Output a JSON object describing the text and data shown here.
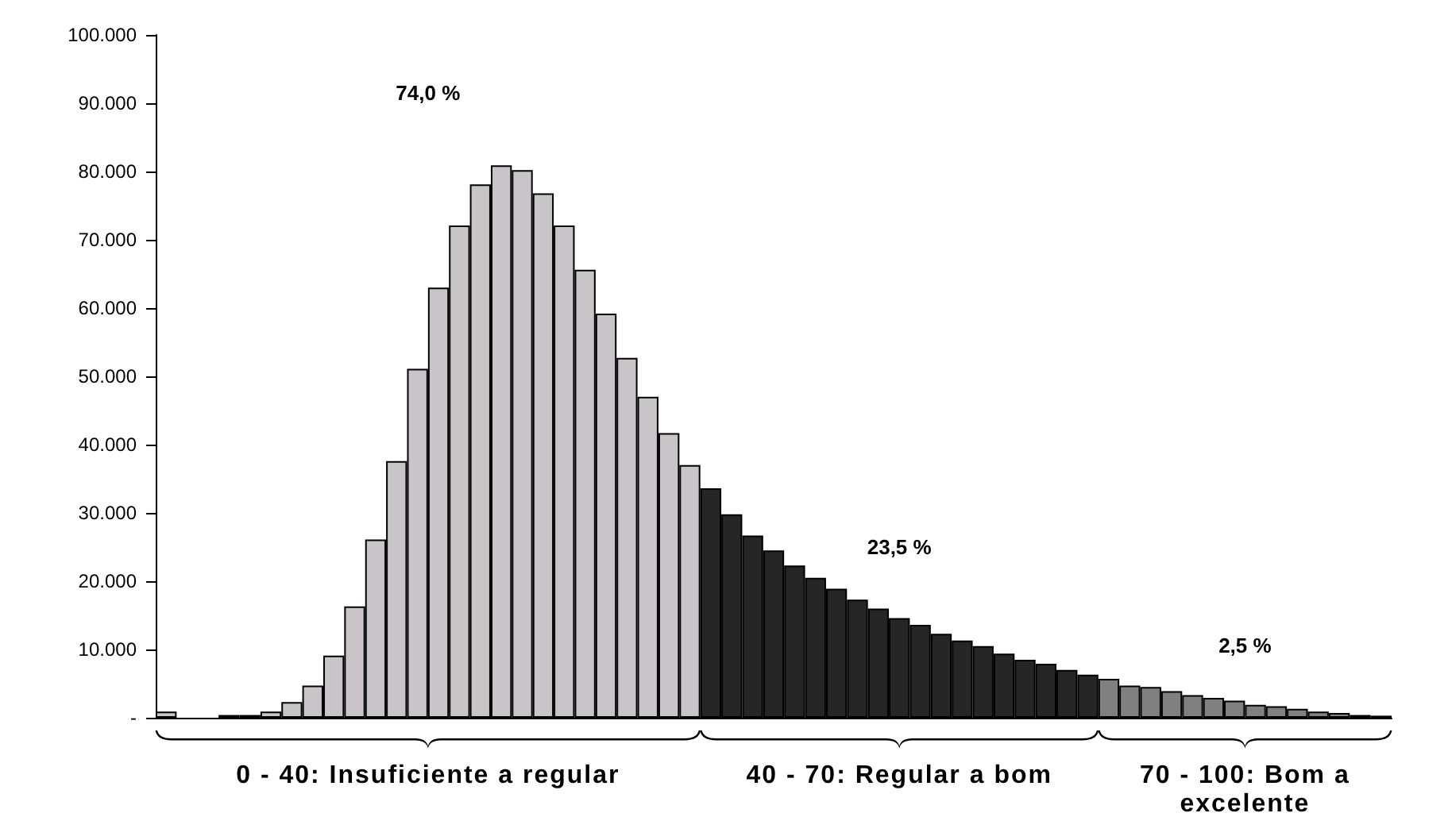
{
  "chart_data": {
    "type": "bar",
    "categories": [
      null,
      null,
      null,
      null,
      null,
      null,
      null,
      null,
      null,
      null,
      null,
      null,
      null,
      null,
      null,
      null,
      null,
      null,
      null,
      null,
      null,
      null,
      null,
      null,
      null,
      null,
      null,
      null,
      null,
      null,
      null,
      null,
      null,
      null,
      null,
      null,
      null,
      null,
      null,
      null,
      null,
      null,
      null,
      null,
      null,
      null,
      null,
      null,
      null,
      null,
      null,
      null,
      null,
      null,
      null,
      null,
      null,
      null,
      null
    ],
    "values": [
      900,
      null,
      null,
      400,
      400,
      900,
      2300,
      4700,
      9100,
      16300,
      26100,
      37600,
      51100,
      63000,
      72100,
      78100,
      80900,
      80200,
      76800,
      72100,
      65600,
      59200,
      52700,
      47000,
      41700,
      37000,
      33600,
      29800,
      26700,
      24500,
      22300,
      20500,
      18900,
      17300,
      16000,
      14600,
      13600,
      12300,
      11300,
      10500,
      9400,
      8500,
      7900,
      7000,
      6300,
      5700,
      4700,
      4500,
      3900,
      3300,
      2900,
      2500,
      1900,
      1700,
      1300,
      900,
      700,
      400,
      300
    ],
    "colors": [
      "#c8c4c8",
      "#c8c4c8",
      "#c8c4c8",
      "#c8c4c8",
      "#c8c4c8",
      "#c8c4c8",
      "#c8c4c8",
      "#c8c4c8",
      "#c8c4c8",
      "#c8c4c8",
      "#c8c4c8",
      "#c8c4c8",
      "#c8c4c8",
      "#c8c4c8",
      "#c8c4c8",
      "#c8c4c8",
      "#c8c4c8",
      "#c8c4c8",
      "#c8c4c8",
      "#c8c4c8",
      "#c8c4c8",
      "#c8c4c8",
      "#c8c4c8",
      "#c8c4c8",
      "#c8c4c8",
      "#c8c4c8",
      "#262626",
      "#262626",
      "#262626",
      "#262626",
      "#262626",
      "#262626",
      "#262626",
      "#262626",
      "#262626",
      "#262626",
      "#262626",
      "#262626",
      "#262626",
      "#262626",
      "#262626",
      "#262626",
      "#262626",
      "#262626",
      "#262626",
      "#808080",
      "#808080",
      "#808080",
      "#808080",
      "#808080",
      "#808080",
      "#808080",
      "#808080",
      "#808080",
      "#808080",
      "#808080",
      "#808080",
      "#808080",
      "#808080"
    ],
    "ylim": [
      0,
      100000
    ],
    "yticks": [
      {
        "value": 0,
        "label": "-"
      },
      {
        "value": 10000,
        "label": "10.000"
      },
      {
        "value": 20000,
        "label": "20.000"
      },
      {
        "value": 30000,
        "label": "30.000"
      },
      {
        "value": 40000,
        "label": "40.000"
      },
      {
        "value": 50000,
        "label": "50.000"
      },
      {
        "value": 60000,
        "label": "60.000"
      },
      {
        "value": 70000,
        "label": "70.000"
      },
      {
        "value": 80000,
        "label": "80.000"
      },
      {
        "value": 90000,
        "label": "90.000"
      },
      {
        "value": 100000,
        "label": "100.000"
      }
    ],
    "tick_labels": "y",
    "grid": false,
    "annotations": [
      "74,0 %",
      "23,5 %",
      "2,5 %",
      "0 - 40: Insuficiente a regular",
      "40 - 70: Regular a bom",
      "70 - 100: Bom a excelente"
    ]
  }
}
